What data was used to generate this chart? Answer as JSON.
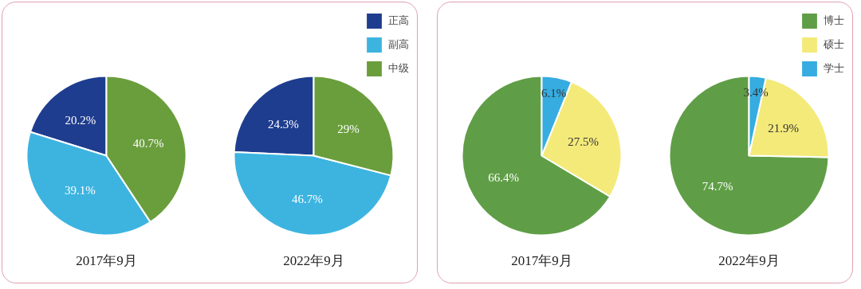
{
  "chart_data": [
    {
      "type": "pie",
      "title": "2017年9月",
      "categories": [
        "正高",
        "副高",
        "中级"
      ],
      "values": [
        20.2,
        39.1,
        40.7
      ],
      "colors": [
        "#1f3d8f",
        "#3db4e0",
        "#6a9e3c"
      ],
      "value_labels": [
        "20.2%",
        "39.1%",
        "40.7%"
      ],
      "legend": "top right"
    },
    {
      "type": "pie",
      "title": "2022年9月",
      "categories": [
        null,
        null,
        null
      ],
      "values": [
        24.3,
        46.7,
        29
      ],
      "colors": [
        "#1f3d8f",
        "#3db4e0",
        "#6a9e3c"
      ],
      "value_labels": [
        "24.3%",
        "46.7%",
        "29%"
      ]
    },
    {
      "type": "pie",
      "title": "2017年9月",
      "categories": [
        "博士",
        "硕士",
        "学士"
      ],
      "values": [
        66.4,
        27.5,
        6.1
      ],
      "colors": [
        "#5f9e46",
        "#f4ea7a",
        "#36ace0"
      ],
      "value_labels": [
        "66.4%",
        "27.5%",
        "6.1%"
      ],
      "legend": "top right"
    },
    {
      "type": "pie",
      "title": "2022年9月",
      "categories": [
        null,
        null,
        null
      ],
      "values": [
        74.7,
        21.9,
        3.4
      ],
      "colors": [
        "#5f9e46",
        "#f4ea7a",
        "#36ace0"
      ],
      "value_labels": [
        "74.7%",
        "21.9%",
        "3.4%"
      ]
    }
  ]
}
